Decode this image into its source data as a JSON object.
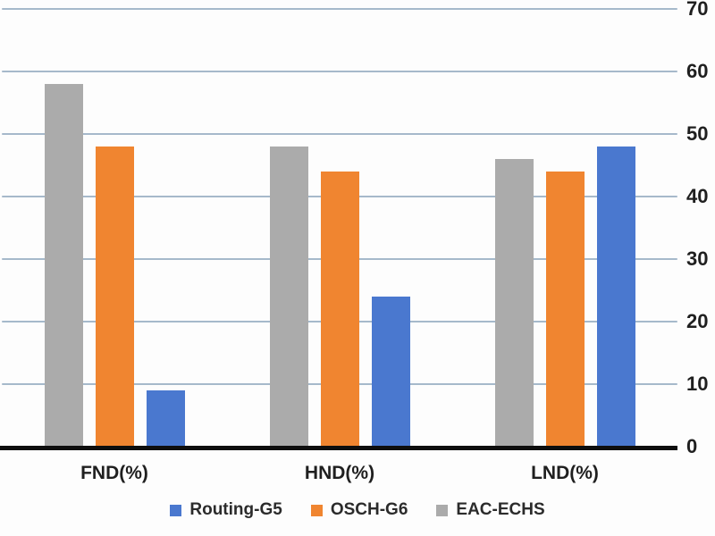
{
  "chart_data": {
    "type": "bar",
    "title": "",
    "categories": [
      "FND(%)",
      "HND(%)",
      "LND(%)"
    ],
    "series": [
      {
        "name": "Routing-G5",
        "color": "#4a78cf",
        "values": [
          9,
          24,
          48
        ]
      },
      {
        "name": "OSCH-G6",
        "color": "#f08530",
        "values": [
          48,
          44,
          44
        ]
      },
      {
        "name": "EAC-ECHS",
        "color": "#ababab",
        "values": [
          58,
          48,
          46
        ]
      }
    ],
    "plot_order": [
      2,
      1,
      0
    ],
    "ylim": [
      0,
      70
    ],
    "yticks": [
      0,
      10,
      20,
      30,
      40,
      50,
      60,
      70
    ],
    "y_axis_side": "right",
    "grid": true,
    "gridline_color": "#a6b9cb",
    "axis_line_color": "#0e0e0e",
    "legend_position": "bottom"
  },
  "legend": {
    "items": [
      {
        "label": "Routing-G5",
        "color": "#4a78cf"
      },
      {
        "label": "OSCH-G6",
        "color": "#f08530"
      },
      {
        "label": "EAC-ECHS",
        "color": "#ababab"
      }
    ]
  }
}
